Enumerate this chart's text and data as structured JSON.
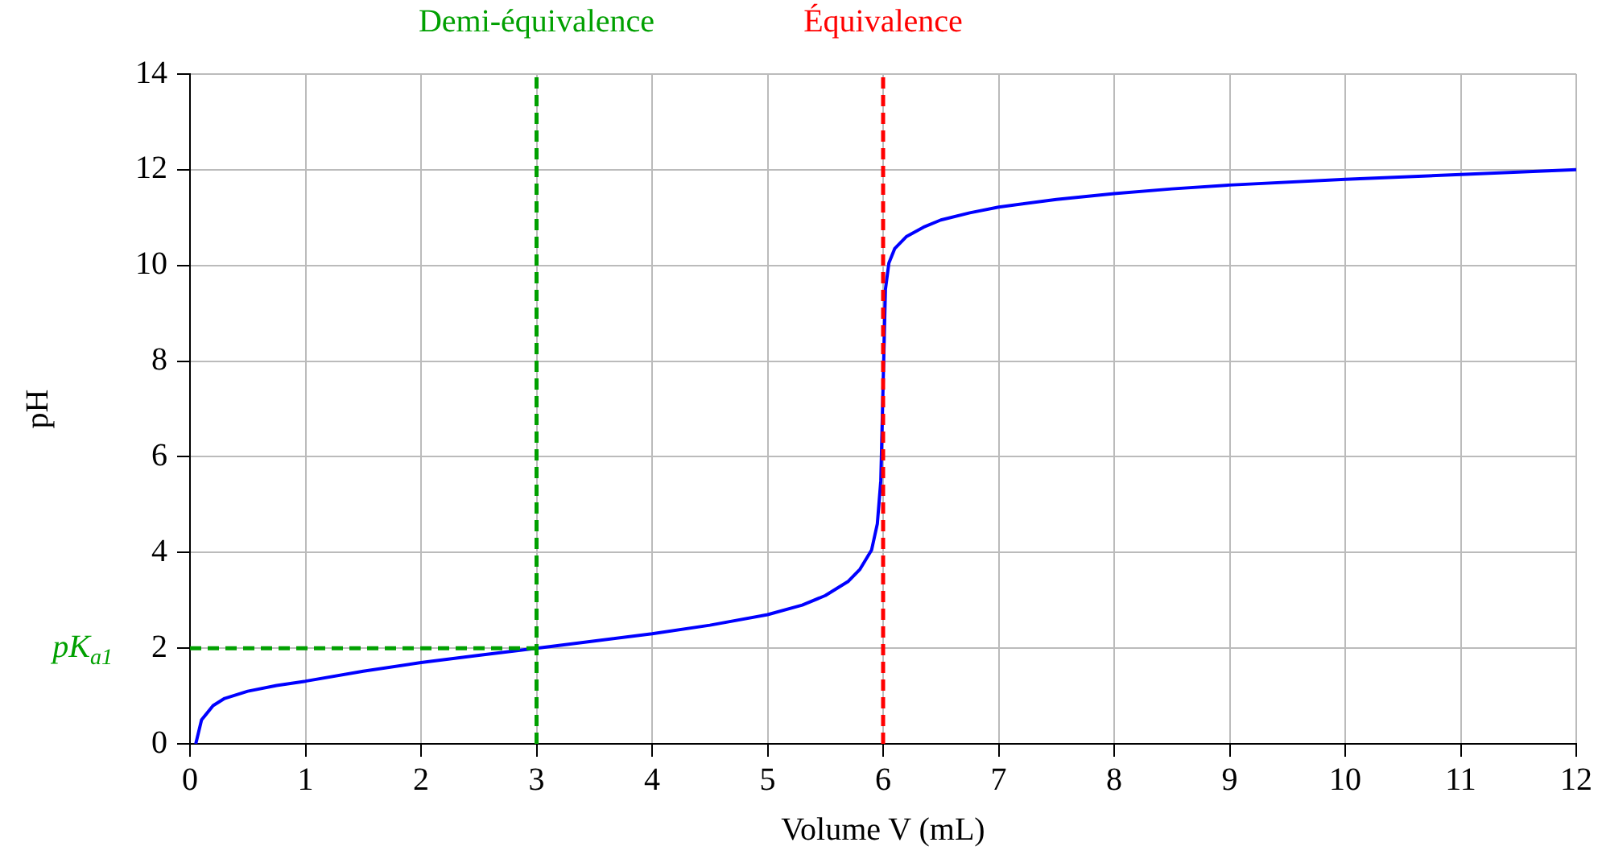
{
  "chart_data": {
    "type": "line",
    "xlabel": "Volume V (mL)",
    "ylabel": "pH",
    "x": [
      0.05,
      0.1,
      0.2,
      0.3,
      0.5,
      0.75,
      1,
      1.5,
      2,
      2.5,
      3,
      3.5,
      4,
      4.5,
      5,
      5.3,
      5.5,
      5.7,
      5.8,
      5.9,
      5.95,
      5.98,
      6.0,
      6.02,
      6.05,
      6.1,
      6.2,
      6.35,
      6.5,
      6.75,
      7,
      7.5,
      8,
      8.5,
      9,
      10,
      11,
      12
    ],
    "series": [
      {
        "color": "#0000ff",
        "values": [
          0,
          0.5,
          0.8,
          0.95,
          1.1,
          1.22,
          1.31,
          1.52,
          1.7,
          1.85,
          2.0,
          2.15,
          2.3,
          2.48,
          2.7,
          2.9,
          3.1,
          3.4,
          3.65,
          4.05,
          4.6,
          5.5,
          7.5,
          9.5,
          10.05,
          10.35,
          10.6,
          10.8,
          10.95,
          11.1,
          11.22,
          11.38,
          11.5,
          11.6,
          11.68,
          11.8,
          11.9,
          12.0
        ]
      }
    ],
    "xlim": [
      0,
      12
    ],
    "xticks": [
      0,
      1,
      2,
      3,
      4,
      5,
      6,
      7,
      8,
      9,
      10,
      11,
      12
    ],
    "ylim": [
      0,
      14
    ],
    "yticks": [
      0,
      2,
      4,
      6,
      8,
      10,
      12,
      14
    ],
    "grid": true,
    "legend": false,
    "marker": "none",
    "line_style": "solid",
    "ref_lines": [
      {
        "axis": "x",
        "value": 3,
        "label": "Demi-équivalence",
        "color": "#00a000",
        "line_style": "dashed"
      },
      {
        "axis": "x",
        "value": 6,
        "label": "Équivalence",
        "color": "#ff0000",
        "line_style": "dashed"
      },
      {
        "axis": "y",
        "value": 2,
        "label": "pK$_{a1}$",
        "color": "#00a000",
        "line_style": "dashed"
      }
    ]
  }
}
